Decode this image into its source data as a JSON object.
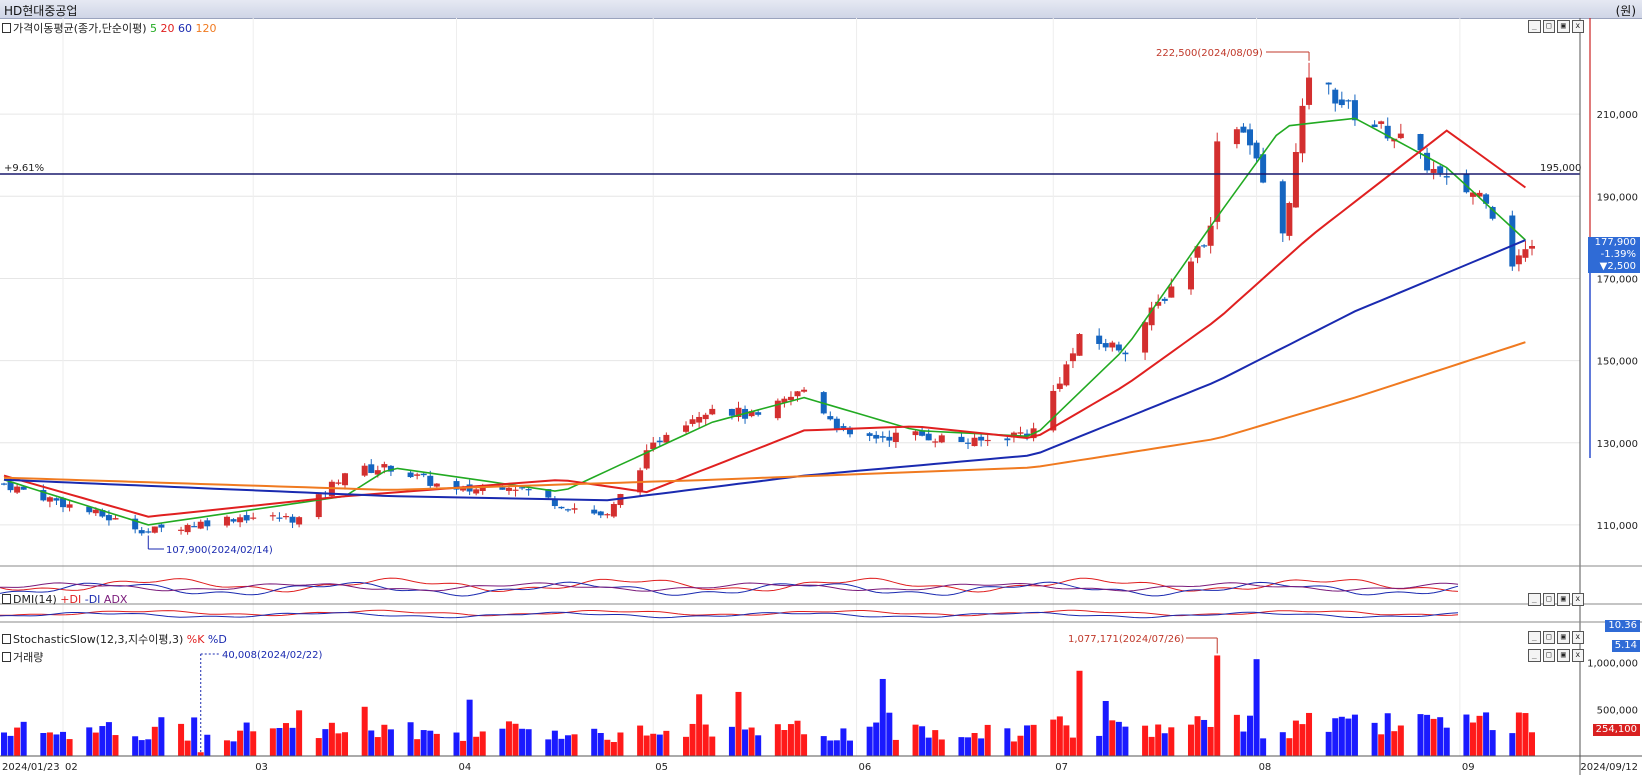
{
  "window": {
    "title": "HD현대중공업",
    "unit": "(원)"
  },
  "panels": {
    "price": {
      "label": "가격이동평균(종가,단순이평)",
      "ma_periods": [
        "5",
        "20",
        "60",
        "120"
      ],
      "ma_colors": [
        "#22aa22",
        "#e02020",
        "#1a2ab0",
        "#f07a20"
      ]
    },
    "dmi": {
      "label": "DMI(14)",
      "series": [
        "+DI",
        "-DI",
        "ADX"
      ],
      "value_tag": "10.36"
    },
    "stoch": {
      "label": "StochasticSlow(12,3,지수이평,3)",
      "series": [
        "%K",
        "%D"
      ],
      "value_tag": "5.14"
    },
    "volume": {
      "label": "거래량",
      "value_tag": "254,100"
    }
  },
  "annotations": {
    "high": "222,500(2024/08/09)",
    "low": "107,900(2024/02/14)",
    "vol_high": "1,077,171(2024/07/26)",
    "vol_low": "40,008(2024/02/22)",
    "hline_pct": "+9.61%",
    "hline_value": "195,000"
  },
  "current": {
    "price": "177,900",
    "change_pct": "-1.39%",
    "change": "▼2,500"
  },
  "x_axis": {
    "start": "2024/01/23",
    "end": "2024/09/12",
    "months": [
      "02",
      "03",
      "04",
      "05",
      "06",
      "07",
      "08",
      "09"
    ]
  },
  "y_axis": {
    "price_ticks": [
      "210,000",
      "190,000",
      "170,000",
      "150,000",
      "130,000",
      "110,000"
    ],
    "volume_ticks": [
      "1,000,000",
      "500,000"
    ]
  },
  "chart_data": {
    "type": "candlestick",
    "title": "HD현대중공업",
    "x_range": [
      "2024/01/23",
      "2024/09/12"
    ],
    "price_ylim": [
      100000,
      230000
    ],
    "price_close_path": [
      [
        "2024/01/23",
        120000
      ],
      [
        "2024/02/14",
        108500
      ],
      [
        "2024/02/28",
        112000
      ],
      [
        "2024/03/08",
        111500
      ],
      [
        "2024/03/15",
        123000
      ],
      [
        "2024/03/22",
        124000
      ],
      [
        "2024/04/01",
        118000
      ],
      [
        "2024/04/09",
        120000
      ],
      [
        "2024/04/17",
        115000
      ],
      [
        "2024/04/24",
        112000
      ],
      [
        "2024/04/30",
        127000
      ],
      [
        "2024/05/03",
        133000
      ],
      [
        "2024/05/10",
        139000
      ],
      [
        "2024/05/17",
        136000
      ],
      [
        "2024/05/24",
        143000
      ],
      [
        "2024/05/31",
        131000
      ],
      [
        "2024/06/10",
        132000
      ],
      [
        "2024/06/19",
        130000
      ],
      [
        "2024/06/28",
        133000
      ],
      [
        "2024/07/05",
        155000
      ],
      [
        "2024/07/12",
        153000
      ],
      [
        "2024/07/19",
        168000
      ],
      [
        "2024/07/25",
        182000
      ],
      [
        "2024/07/26",
        205000
      ],
      [
        "2024/07/30",
        207000
      ],
      [
        "2024/08/05",
        180000
      ],
      [
        "2024/08/09",
        220000
      ],
      [
        "2024/08/16",
        210000
      ],
      [
        "2024/08/23",
        204000
      ],
      [
        "2024/08/30",
        193000
      ],
      [
        "2024/09/05",
        190000
      ],
      [
        "2024/09/09",
        174000
      ],
      [
        "2024/09/12",
        177900
      ]
    ],
    "moving_averages": [
      {
        "name": "5",
        "values": [
          [
            "2024/01/23",
            121000
          ],
          [
            "2024/02/14",
            110000
          ],
          [
            "2024/03/15",
            117000
          ],
          [
            "2024/03/22",
            124000
          ],
          [
            "2024/04/17",
            118000
          ],
          [
            "2024/05/10",
            135000
          ],
          [
            "2024/05/24",
            141000
          ],
          [
            "2024/06/10",
            133000
          ],
          [
            "2024/06/28",
            131500
          ],
          [
            "2024/07/12",
            153000
          ],
          [
            "2024/07/26",
            185000
          ],
          [
            "2024/08/05",
            207000
          ],
          [
            "2024/08/16",
            209000
          ],
          [
            "2024/08/30",
            197000
          ],
          [
            "2024/09/12",
            177900
          ]
        ]
      },
      {
        "name": "20",
        "values": [
          [
            "2024/01/23",
            122000
          ],
          [
            "2024/02/14",
            112000
          ],
          [
            "2024/03/15",
            117000
          ],
          [
            "2024/04/17",
            121000
          ],
          [
            "2024/04/30",
            118000
          ],
          [
            "2024/05/24",
            133000
          ],
          [
            "2024/06/10",
            134000
          ],
          [
            "2024/06/28",
            131000
          ],
          [
            "2024/07/12",
            144000
          ],
          [
            "2024/07/26",
            160000
          ],
          [
            "2024/08/09",
            180000
          ],
          [
            "2024/08/30",
            206000
          ],
          [
            "2024/09/12",
            191000
          ]
        ]
      },
      {
        "name": "60",
        "values": [
          [
            "2024/01/23",
            121000
          ],
          [
            "2024/03/22",
            117000
          ],
          [
            "2024/04/24",
            116000
          ],
          [
            "2024/05/24",
            122000
          ],
          [
            "2024/06/28",
            127000
          ],
          [
            "2024/07/26",
            145000
          ],
          [
            "2024/08/16",
            162000
          ],
          [
            "2024/09/12",
            180000
          ]
        ]
      },
      {
        "name": "120",
        "values": [
          [
            "2024/01/23",
            121500
          ],
          [
            "2024/03/22",
            118500
          ],
          [
            "2024/05/10",
            121000
          ],
          [
            "2024/06/28",
            124000
          ],
          [
            "2024/07/26",
            131000
          ],
          [
            "2024/08/16",
            141000
          ],
          [
            "2024/09/12",
            155000
          ]
        ]
      }
    ],
    "horizontal_line": 195000,
    "high": {
      "date": "2024/08/09",
      "value": 222500
    },
    "low": {
      "date": "2024/02/14",
      "value": 107900
    },
    "volume_max": {
      "date": "2024/07/26",
      "value": 1077171
    },
    "volume_min": {
      "date": "2024/02/22",
      "value": 40008
    },
    "last_volume": 254100
  }
}
